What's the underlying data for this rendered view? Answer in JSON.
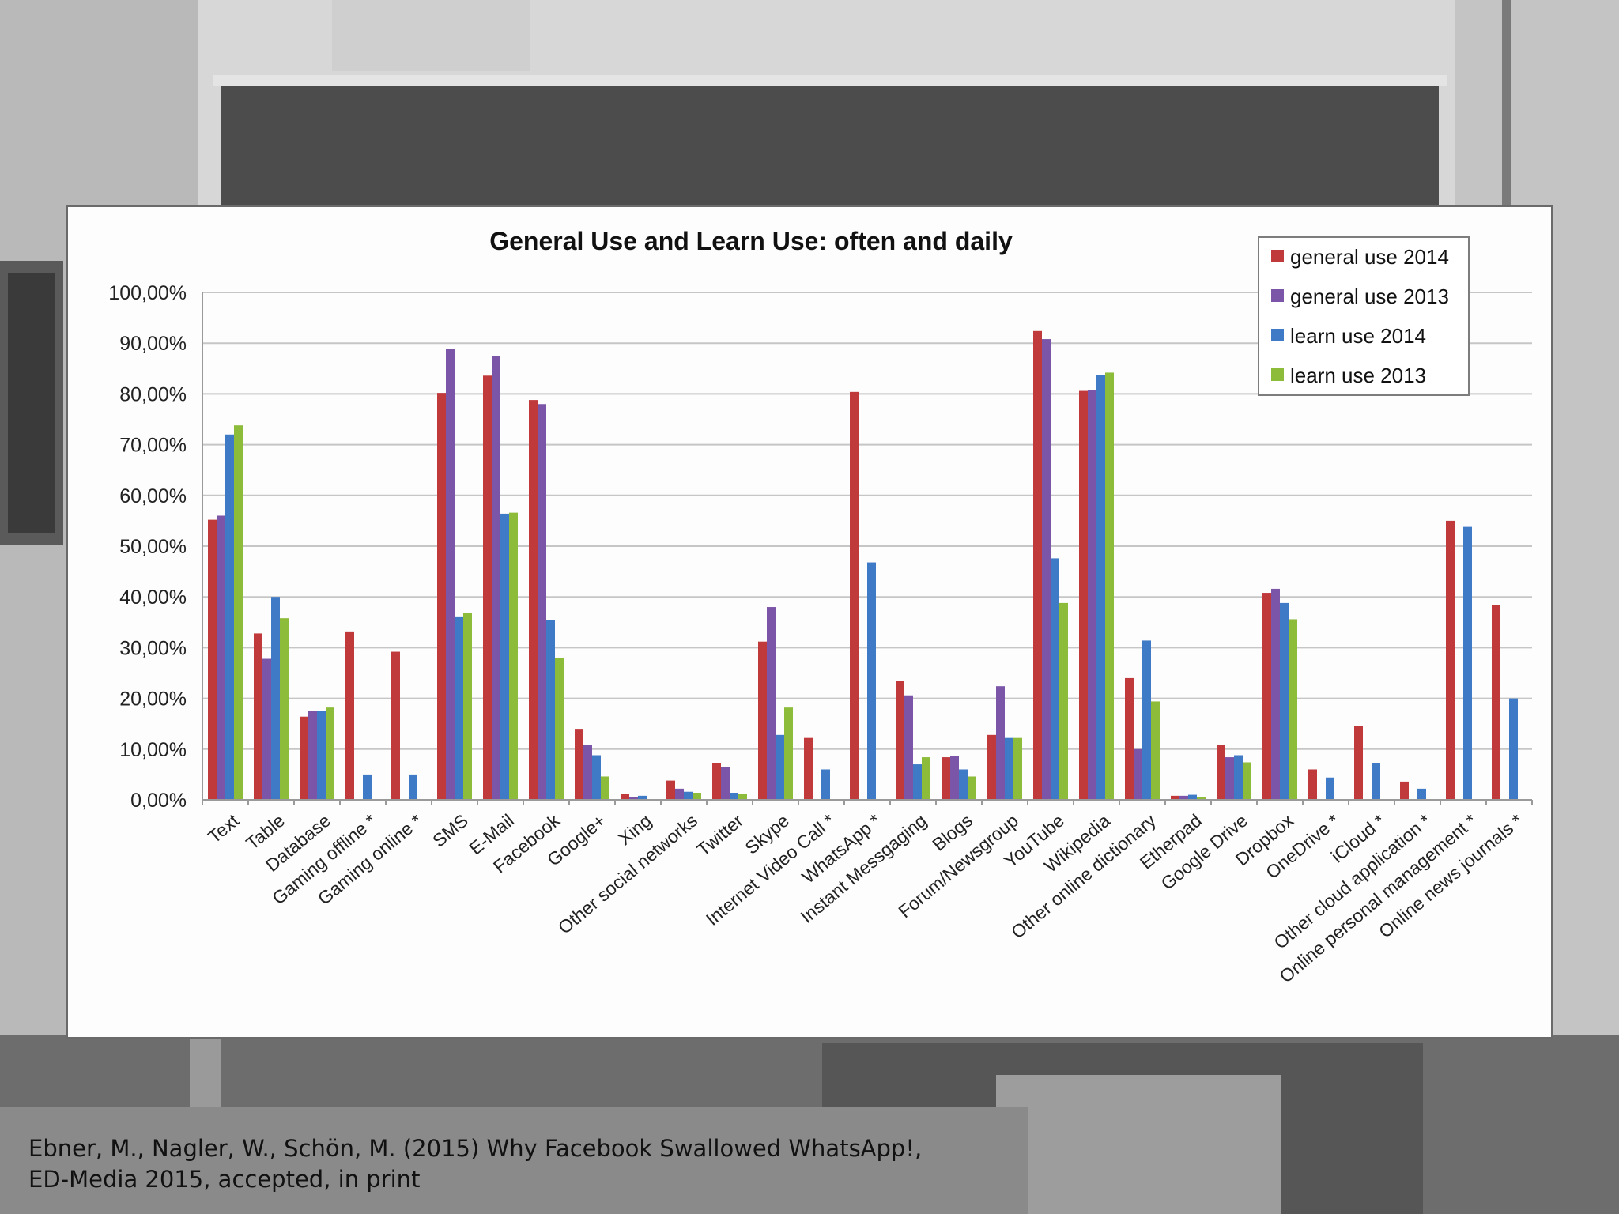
{
  "colors": {
    "general_2014": "#c0393b",
    "general_2013": "#7b55a8",
    "learn_2014": "#3f7ac7",
    "learn_2013": "#8dbb3a"
  },
  "chart_data": {
    "type": "bar",
    "title": "General Use and Learn Use: often and daily",
    "xlabel": "",
    "ylabel": "",
    "ylim": [
      0,
      100
    ],
    "yticks": [
      "0,00%",
      "10,00%",
      "20,00%",
      "30,00%",
      "40,00%",
      "50,00%",
      "60,00%",
      "70,00%",
      "80,00%",
      "90,00%",
      "100,00%"
    ],
    "grid": true,
    "legend_position": "top-right",
    "categories": [
      "Text",
      "Table",
      "Database",
      "Gaming offline *",
      "Gaming online *",
      "SMS",
      "E-Mail",
      "Facebook",
      "Google+",
      "Xing",
      "Other social networks",
      "Twitter",
      "Skype",
      "Internet Video Call *",
      "WhatsApp *",
      "Instant Messgaging",
      "Blogs",
      "Forum/Newsgroup",
      "YouTube",
      "Wikipedia",
      "Other online dictionary",
      "Etherpad",
      "Google Drive",
      "Dropbox",
      "OneDrive *",
      "iCloud *",
      "Other cloud application *",
      "Online personal management *",
      "Online news journals *"
    ],
    "series": [
      {
        "name": "general use 2014",
        "color_key": "general_2014",
        "values": [
          55.2,
          32.8,
          16.4,
          33.2,
          29.2,
          80.2,
          83.6,
          78.8,
          14.0,
          1.2,
          3.8,
          7.2,
          31.2,
          12.2,
          80.4,
          23.4,
          8.4,
          12.8,
          92.4,
          80.6,
          24.0,
          0.8,
          10.8,
          40.8,
          6.0,
          14.5,
          3.6,
          55.0,
          38.4
        ]
      },
      {
        "name": "general use 2013",
        "color_key": "general_2013",
        "values": [
          56.0,
          27.8,
          17.6,
          0,
          0,
          88.8,
          87.4,
          78.0,
          10.8,
          0.6,
          2.2,
          6.4,
          38.0,
          0,
          0,
          20.6,
          8.6,
          22.4,
          90.8,
          80.8,
          10.0,
          0.8,
          8.4,
          41.6,
          0,
          0,
          0,
          0,
          0
        ]
      },
      {
        "name": "learn use 2014",
        "color_key": "learn_2014",
        "values": [
          72.0,
          40.0,
          17.6,
          5.0,
          5.0,
          36.0,
          56.4,
          35.4,
          8.8,
          0.8,
          1.6,
          1.4,
          12.8,
          6.0,
          46.8,
          7.0,
          6.0,
          12.2,
          47.6,
          83.8,
          31.4,
          1.0,
          8.8,
          38.8,
          4.4,
          7.2,
          2.2,
          53.8,
          20.0
        ]
      },
      {
        "name": "learn use 2013",
        "color_key": "learn_2013",
        "values": [
          73.8,
          35.8,
          18.2,
          0,
          0,
          36.8,
          56.6,
          28.0,
          4.6,
          0,
          1.4,
          1.2,
          18.2,
          0,
          0,
          8.4,
          4.6,
          12.2,
          38.8,
          84.2,
          19.4,
          0.5,
          7.4,
          35.6,
          0,
          0,
          0,
          0,
          0
        ]
      }
    ]
  },
  "citation": {
    "line1": "Ebner, M., Nagler, W., Schön, M. (2015) Why Facebook Swallowed WhatsApp!,",
    "line2": "ED-Media 2015, accepted, in print"
  }
}
